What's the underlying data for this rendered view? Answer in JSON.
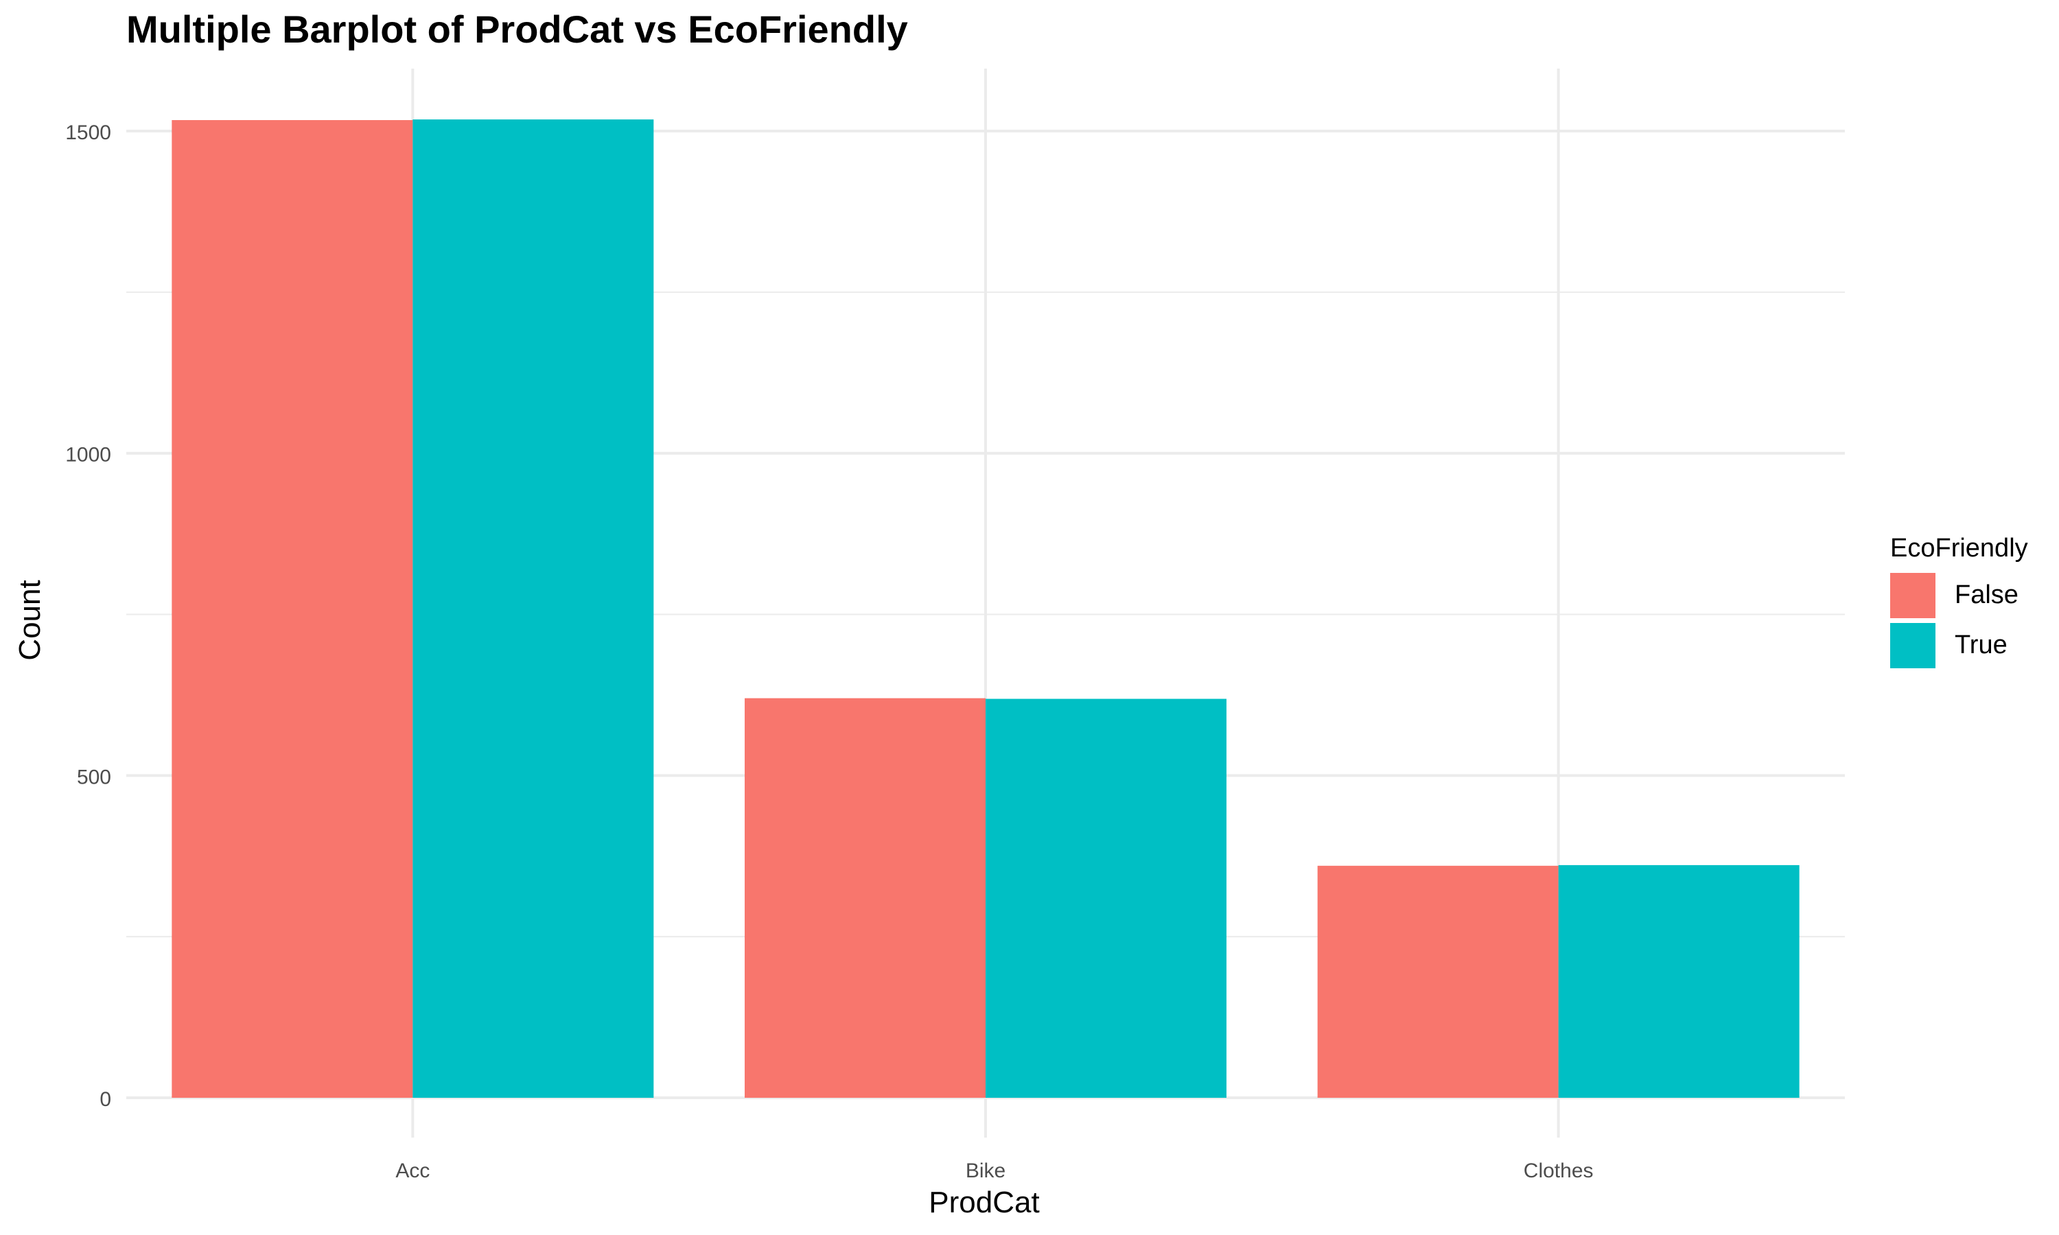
{
  "chart_data": {
    "type": "bar",
    "title": "Multiple Barplot of ProdCat vs EcoFriendly",
    "xlabel": "ProdCat",
    "ylabel": "Count",
    "categories": [
      "Acc",
      "Bike",
      "Clothes"
    ],
    "series": [
      {
        "name": "False",
        "values": [
          1517,
          620,
          360
        ],
        "color": "#F8766D"
      },
      {
        "name": "True",
        "values": [
          1518,
          619,
          361
        ],
        "color": "#00BFC4"
      }
    ],
    "ylim": [
      0,
      1560
    ],
    "yticks": [
      0,
      500,
      1000,
      1500
    ],
    "grid": true,
    "legend": {
      "title": "EcoFriendly",
      "position": "right"
    }
  }
}
